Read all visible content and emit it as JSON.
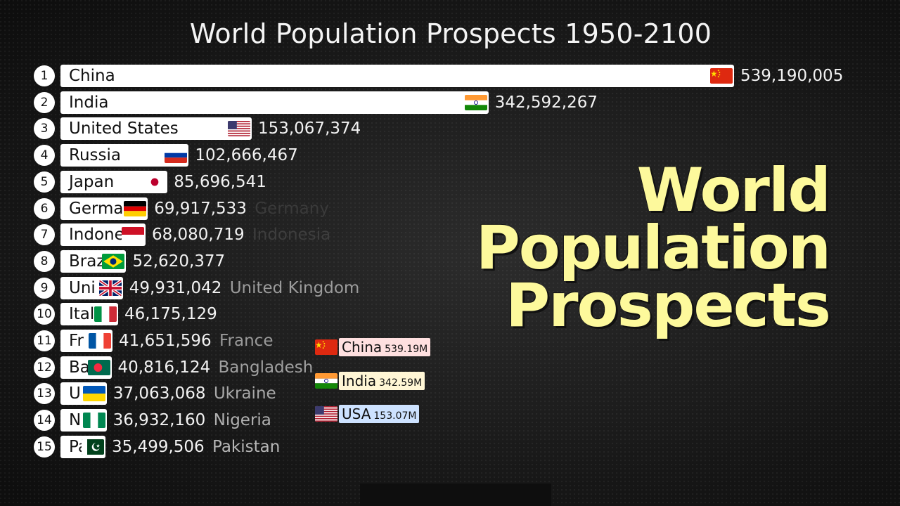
{
  "title": "World Population Prospects 1950-2100",
  "headline": [
    "World",
    "Population",
    "Prospects"
  ],
  "colors": {
    "headline": "#fdf99c",
    "bar": "#ffffff",
    "value": "#f2f2f2"
  },
  "chart_data": {
    "type": "bar",
    "orientation": "horizontal",
    "title": "World Population Prospects 1950-2100",
    "ranks": [
      "1",
      "2",
      "3",
      "4",
      "5",
      "6",
      "7",
      "8",
      "9",
      "10",
      "11",
      "12",
      "13",
      "14",
      "15"
    ],
    "categories": [
      "China",
      "India",
      "United States",
      "Russia",
      "Japan",
      "Germany",
      "Indonesia",
      "Brazil",
      "United Kingdom",
      "Italy",
      "France",
      "Bangladesh",
      "Ukraine",
      "Nigeria",
      "Pakistan"
    ],
    "bar_labels": [
      "China",
      "India",
      "United States",
      "Russia",
      "Japan",
      "Germa",
      "Indone",
      "Braz",
      "Uni",
      "Ital",
      "Fr",
      "Ba",
      "U",
      "N",
      "Pa"
    ],
    "outside_names": [
      "",
      "",
      "",
      "",
      "",
      "Germany",
      "Indonesia",
      "",
      "United Kingdom",
      "",
      "France",
      "Bangladesh",
      "Ukraine",
      "Nigeria",
      "Pakistan"
    ],
    "values": [
      539190005,
      342592267,
      153067374,
      102666467,
      85696541,
      69917533,
      68080719,
      52620377,
      49931042,
      46175129,
      41651596,
      40816124,
      37063068,
      36932160,
      35499506
    ],
    "value_labels": [
      "539,190,005",
      "342,592,267",
      "153,067,374",
      "102,666,467",
      "85,696,541",
      "69,917,533",
      "68,080,719",
      "52,620,377",
      "49,931,042",
      "46,175,129",
      "41,651,596",
      "40,816,124",
      "37,063,068",
      "36,932,160",
      "35,499,506"
    ],
    "flags": [
      "flag-china",
      "flag-india",
      "flag-usa",
      "flag-russia",
      "flag-japan",
      "flag-germany",
      "flag-indonesia",
      "flag-brazil",
      "flag-uk",
      "flag-italy",
      "flag-france",
      "flag-bangladesh",
      "flag-ukraine",
      "flag-nigeria",
      "flag-pakistan"
    ]
  },
  "top3": [
    {
      "name": "China",
      "value": "539.19M",
      "flag": "flag-china",
      "color": "#ffe0e0"
    },
    {
      "name": "India",
      "value": "342.59M",
      "flag": "flag-india",
      "color": "#fff6d5"
    },
    {
      "name": "USA",
      "value": "153.07M",
      "flag": "flag-usa",
      "color": "#cde2ff"
    }
  ]
}
